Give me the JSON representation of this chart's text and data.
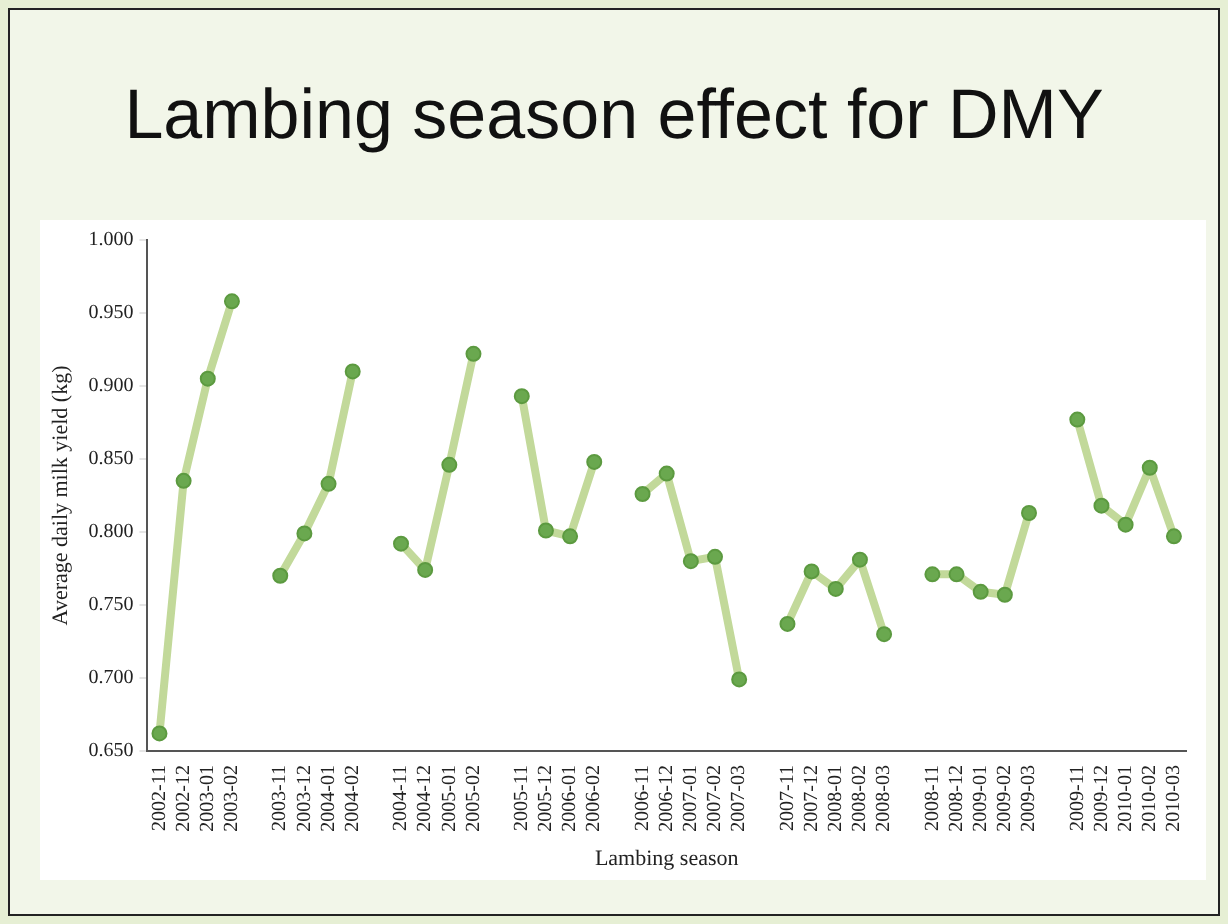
{
  "chart_data": {
    "type": "line",
    "title": "Lambing season effect for DMY",
    "xlabel": "Lambing season",
    "ylabel": "Average daily milk yield (kg)",
    "categories": [
      "2002-11",
      "2002-12",
      "2003-01",
      "2003-02",
      null,
      "2003-11",
      "2003-12",
      "2004-01",
      "2004-02",
      null,
      "2004-11",
      "2004-12",
      "2005-01",
      "2005-02",
      null,
      "2005-11",
      "2005-12",
      "2006-01",
      "2006-02",
      null,
      "2006-11",
      "2006-12",
      "2007-01",
      "2007-02",
      "2007-03",
      null,
      "2007-11",
      "2007-12",
      "2008-01",
      "2008-02",
      "2008-03",
      null,
      "2008-11",
      "2008-12",
      "2009-01",
      "2009-02",
      "2009-03",
      null,
      "2009-11",
      "2009-12",
      "2010-01",
      "2010-02",
      "2010-03"
    ],
    "series": [
      {
        "color": "#c2d99a",
        "values": [
          0.662,
          0.835,
          0.905,
          0.958,
          null,
          0.77,
          0.799,
          0.833,
          0.91,
          null,
          0.792,
          0.774,
          0.846,
          0.922,
          null,
          0.893,
          0.801,
          0.797,
          0.848,
          null,
          0.826,
          0.84,
          0.78,
          0.783,
          0.699,
          null,
          0.737,
          0.773,
          0.761,
          0.781,
          0.73,
          null,
          0.771,
          0.771,
          0.759,
          0.757,
          0.813,
          null,
          0.877,
          0.818,
          0.805,
          0.844,
          0.797
        ]
      }
    ],
    "ylim": [
      0.65,
      1.0
    ],
    "yticks": [
      {
        "value": 0.65,
        "label": "0.650"
      },
      {
        "value": 0.7,
        "label": "0.700"
      },
      {
        "value": 0.75,
        "label": "0.750"
      },
      {
        "value": 0.8,
        "label": "0.800"
      },
      {
        "value": 0.85,
        "label": "0.850"
      },
      {
        "value": 0.9,
        "label": "0.900"
      },
      {
        "value": 0.95,
        "label": "0.950"
      },
      {
        "value": 1.0,
        "label": "1.000"
      }
    ],
    "grid": false,
    "legend": false,
    "marker": "circle",
    "line_style": "solid"
  }
}
